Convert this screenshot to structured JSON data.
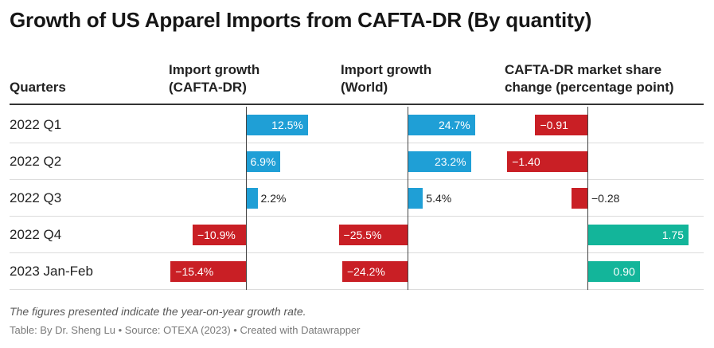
{
  "title": "Growth of US Apparel Imports from CAFTA-DR (By quantity)",
  "headers": {
    "quarters": "Quarters",
    "col1": [
      "Import growth",
      "(CAFTA-DR)"
    ],
    "col2": [
      "Import growth",
      "(World)"
    ],
    "col3": [
      "CAFTA-DR market share",
      "change (percentage point)"
    ]
  },
  "note": "The figures presented indicate the year-on-year growth rate.",
  "source": "Table: By Dr. Sheng Lu • Source: OTEXA (2023) • Created with Datawrapper",
  "colors": {
    "positive_growth": "#1f9fd6",
    "negative": "#c91f25",
    "positive_share": "#13b59a"
  },
  "chart_data": {
    "type": "table",
    "title": "Growth of US Apparel Imports from CAFTA-DR (By quantity)",
    "categories": [
      "2022 Q1",
      "2022 Q2",
      "2022 Q3",
      "2022 Q4",
      "2023 Jan-Feb"
    ],
    "series": [
      {
        "name": "Import growth (CAFTA-DR)",
        "values": [
          12.5,
          6.9,
          2.2,
          -10.9,
          -15.4
        ],
        "labels": [
          "12.5%",
          "6.9%",
          "2.2%",
          "−10.9%",
          "−15.4%"
        ]
      },
      {
        "name": "Import growth (World)",
        "values": [
          24.7,
          23.2,
          5.4,
          -25.5,
          -24.2
        ],
        "labels": [
          "24.7%",
          "23.2%",
          "5.4%",
          "−25.5%",
          "−24.2%"
        ]
      },
      {
        "name": "CAFTA-DR market share change (percentage point)",
        "values": [
          -0.91,
          -1.4,
          -0.28,
          1.75,
          0.9
        ],
        "labels": [
          "−0.91",
          "−1.40",
          "−0.28",
          "1.75",
          "0.90"
        ]
      }
    ]
  }
}
